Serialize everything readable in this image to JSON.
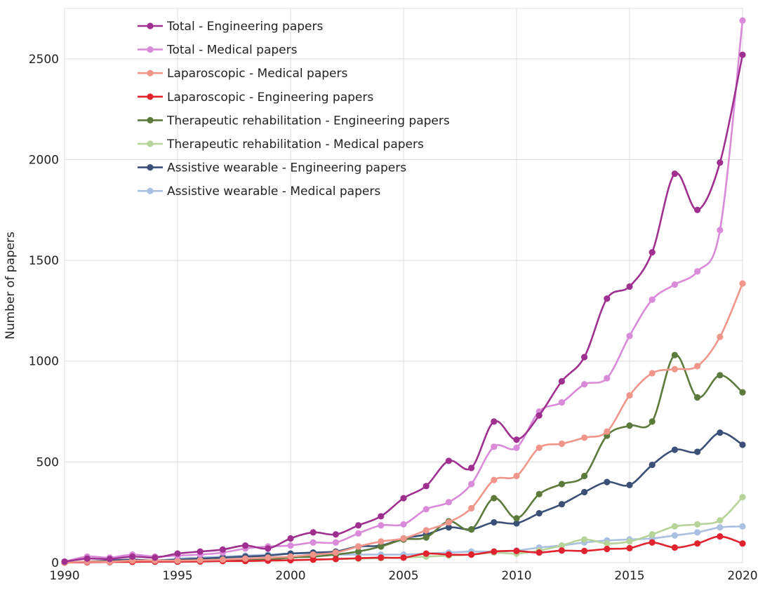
{
  "chart_data": {
    "type": "line",
    "title": "",
    "xlabel": "",
    "ylabel": "Number of papers",
    "xlim": [
      1990,
      2020
    ],
    "ylim": [
      0,
      2750
    ],
    "x_ticks": [
      1990,
      1995,
      2000,
      2005,
      2010,
      2015,
      2020
    ],
    "y_ticks": [
      0,
      500,
      1000,
      1500,
      2000,
      2500
    ],
    "grid": true,
    "legend_position": "top-left",
    "x": [
      1990,
      1991,
      1992,
      1993,
      1994,
      1995,
      1996,
      1997,
      1998,
      1999,
      2000,
      2001,
      2002,
      2003,
      2004,
      2005,
      2006,
      2007,
      2008,
      2009,
      2010,
      2011,
      2012,
      2013,
      2014,
      2015,
      2016,
      2017,
      2018,
      2019,
      2020
    ],
    "series": [
      {
        "name": "Total - Engineering papers",
        "color": "#a0308f",
        "values": [
          5,
          20,
          18,
          30,
          25,
          45,
          55,
          65,
          85,
          70,
          120,
          150,
          140,
          185,
          230,
          320,
          380,
          505,
          470,
          700,
          610,
          730,
          900,
          1020,
          1310,
          1370,
          1540,
          1930,
          1750,
          1985,
          2520
        ]
      },
      {
        "name": "Total - Medical papers",
        "color": "#d98ad8",
        "values": [
          5,
          30,
          25,
          40,
          30,
          35,
          40,
          50,
          70,
          80,
          85,
          100,
          100,
          145,
          185,
          190,
          265,
          300,
          390,
          575,
          570,
          750,
          795,
          885,
          915,
          1125,
          1305,
          1380,
          1445,
          1650,
          2690
        ]
      },
      {
        "name": "Laparoscopic - Medical papers",
        "color": "#f0958a",
        "values": [
          0,
          5,
          5,
          10,
          10,
          10,
          12,
          15,
          20,
          25,
          30,
          40,
          50,
          80,
          105,
          120,
          160,
          200,
          270,
          410,
          430,
          570,
          590,
          620,
          650,
          830,
          940,
          960,
          975,
          1120,
          1385
        ]
      },
      {
        "name": "Laparoscopic - Engineering papers",
        "color": "#e0232f",
        "values": [
          0,
          2,
          3,
          4,
          5,
          5,
          6,
          8,
          8,
          10,
          12,
          15,
          18,
          22,
          25,
          25,
          45,
          40,
          40,
          55,
          58,
          50,
          60,
          58,
          68,
          72,
          100,
          75,
          95,
          130,
          95
        ]
      },
      {
        "name": "Therapeutic rehabilitation - Engineering papers",
        "color": "#5c7a3b",
        "values": [
          0,
          3,
          5,
          8,
          8,
          10,
          12,
          15,
          15,
          15,
          25,
          30,
          40,
          55,
          80,
          115,
          125,
          205,
          165,
          320,
          220,
          340,
          390,
          430,
          630,
          680,
          700,
          1030,
          820,
          930,
          845
        ]
      },
      {
        "name": "Therapeutic rehabilitation - Medical papers",
        "color": "#b6d39a",
        "values": [
          0,
          2,
          3,
          5,
          5,
          5,
          5,
          8,
          8,
          10,
          12,
          15,
          18,
          20,
          22,
          25,
          30,
          35,
          40,
          50,
          45,
          60,
          85,
          115,
          95,
          105,
          140,
          180,
          190,
          210,
          325
        ]
      },
      {
        "name": "Assistive wearable - Engineering papers",
        "color": "#3a5077",
        "values": [
          0,
          5,
          10,
          15,
          10,
          15,
          20,
          25,
          30,
          35,
          45,
          50,
          55,
          80,
          85,
          120,
          140,
          175,
          165,
          200,
          195,
          245,
          290,
          350,
          400,
          385,
          485,
          560,
          550,
          645,
          585
        ]
      },
      {
        "name": "Assistive wearable - Medical papers",
        "color": "#a9c0e0",
        "values": [
          0,
          5,
          8,
          12,
          10,
          20,
          25,
          30,
          35,
          40,
          45,
          45,
          40,
          40,
          40,
          40,
          45,
          50,
          55,
          55,
          60,
          75,
          85,
          100,
          110,
          115,
          120,
          135,
          150,
          175,
          180
        ]
      }
    ]
  }
}
